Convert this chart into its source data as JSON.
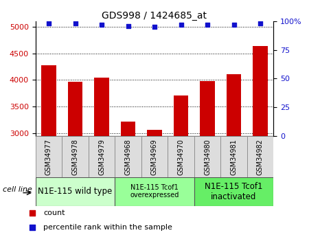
{
  "title": "GDS998 / 1424685_at",
  "samples": [
    "GSM34977",
    "GSM34978",
    "GSM34979",
    "GSM34968",
    "GSM34969",
    "GSM34970",
    "GSM34980",
    "GSM34981",
    "GSM34982"
  ],
  "counts": [
    4280,
    3970,
    4040,
    3220,
    3060,
    3700,
    3980,
    4110,
    4640
  ],
  "percentiles": [
    98,
    98,
    97,
    96,
    95,
    97,
    97,
    97,
    98
  ],
  "ylim_left": [
    2950,
    5100
  ],
  "ylim_right": [
    0,
    100
  ],
  "yticks_left": [
    3000,
    3500,
    4000,
    4500,
    5000
  ],
  "yticks_right": [
    0,
    25,
    50,
    75,
    100
  ],
  "cell_line_groups": [
    {
      "label": "N1E-115 wild type",
      "indices": [
        0,
        1,
        2
      ],
      "color": "#ccffcc",
      "fontsize": 8.5
    },
    {
      "label": "N1E-115 Tcof1\noverexpressed",
      "indices": [
        3,
        4,
        5
      ],
      "color": "#99ff99",
      "fontsize": 7
    },
    {
      "label": "N1E-115 Tcof1\ninactivated",
      "indices": [
        6,
        7,
        8
      ],
      "color": "#66ee66",
      "fontsize": 8.5
    }
  ],
  "bar_color": "#cc0000",
  "dot_color": "#1111cc",
  "bar_width": 0.55,
  "tick_label_color_left": "#cc0000",
  "tick_label_color_right": "#1111cc",
  "grid_color": "#000000",
  "bg_color": "#ffffff",
  "cell_line_label": "cell line",
  "legend_count_label": "count",
  "legend_percentile_label": "percentile rank within the sample",
  "sample_cell_color": "#dddddd"
}
